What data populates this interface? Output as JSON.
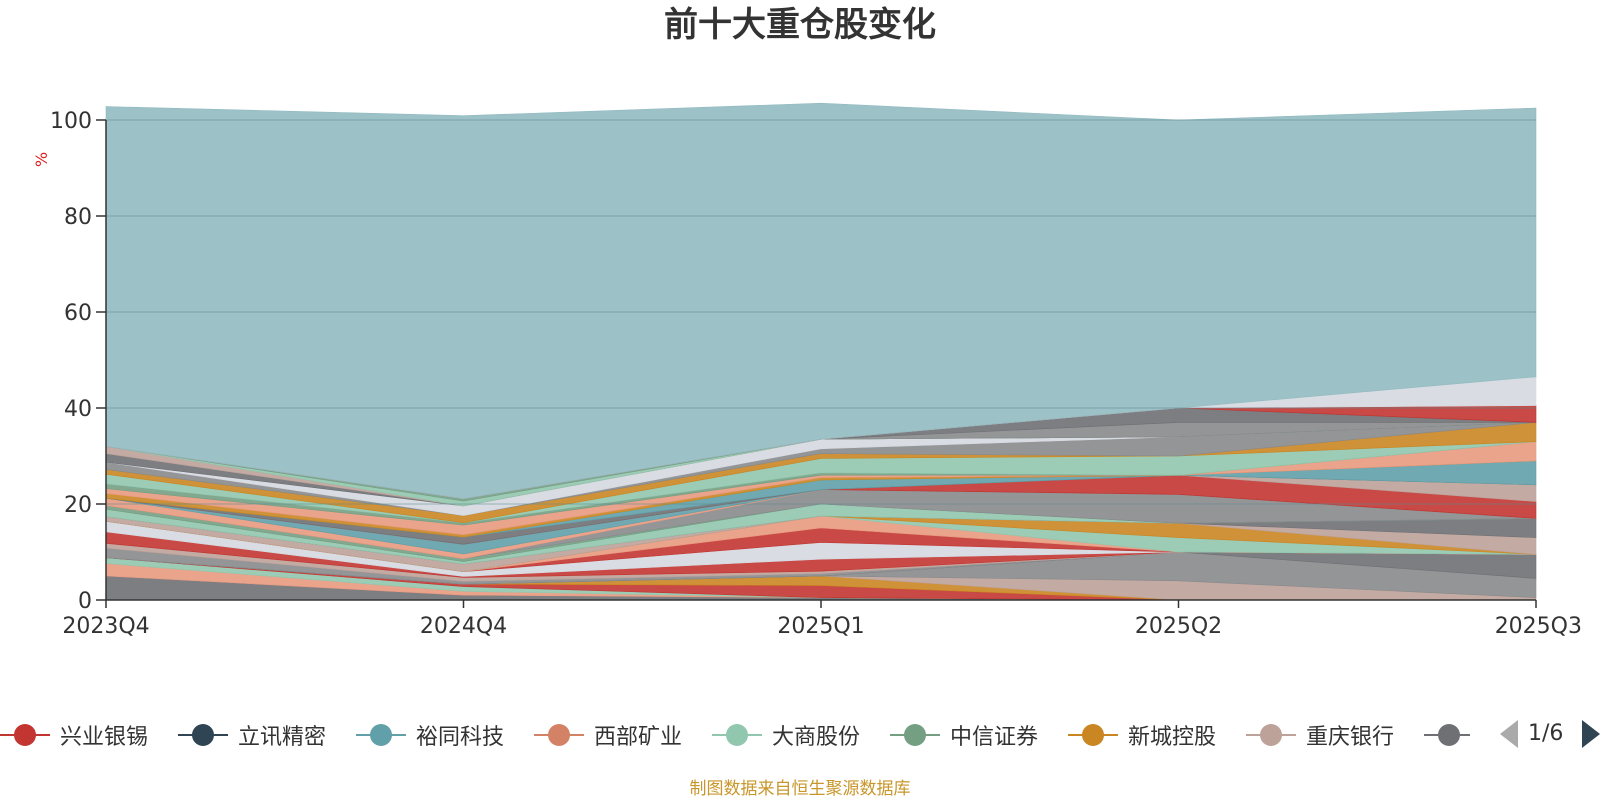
{
  "title": "前十大重仓股变化",
  "source_note": "制图数据来自恒生聚源数据库",
  "legend_pager": "1/6",
  "legend": [
    {
      "name": "兴业银锡",
      "color": "#c23531"
    },
    {
      "name": "立讯精密",
      "color": "#2f4554"
    },
    {
      "name": "裕同科技",
      "color": "#61a0a8"
    },
    {
      "name": "西部矿业",
      "color": "#d48265"
    },
    {
      "name": "大商股份",
      "color": "#91c7ae"
    },
    {
      "name": "中信证券",
      "color": "#749f83"
    },
    {
      "name": "新城控股",
      "color": "#ca8622"
    },
    {
      "name": "重庆银行",
      "color": "#bda29a"
    },
    {
      "name": "",
      "color": "#6e7074"
    }
  ],
  "chart_data": {
    "type": "area",
    "stacked": true,
    "ylabel": "%",
    "ylim": [
      0,
      100
    ],
    "yticks": [
      0,
      20,
      40,
      60,
      80,
      100
    ],
    "grid": true,
    "x": [
      "2023Q4",
      "2024Q4",
      "2025Q1",
      "2025Q2",
      "2025Q3"
    ],
    "series": [
      {
        "color": "#6e7074",
        "values": [
          5.0,
          1.0,
          0.5,
          0.0,
          0.0
        ]
      },
      {
        "color": "#e89a80",
        "values": [
          2.6,
          0.8,
          0.0,
          0.0,
          0.0
        ]
      },
      {
        "color": "#91c7ae",
        "values": [
          1.2,
          1.0,
          0.0,
          0.0,
          0.0
        ]
      },
      {
        "color": "#c23531",
        "values": [
          0.0,
          0.5,
          2.5,
          0.0,
          0.0
        ]
      },
      {
        "color": "#ca8622",
        "values": [
          0.0,
          0.0,
          2.0,
          0.0,
          0.0
        ]
      },
      {
        "color": "#bda29a",
        "values": [
          0.0,
          0.0,
          0.0,
          4.0,
          0.5
        ]
      },
      {
        "color": "#888a8c",
        "values": [
          0.0,
          0.0,
          0.0,
          6.0,
          4.0
        ]
      },
      {
        "color": "#6e7074",
        "values": [
          0.0,
          0.0,
          0.0,
          0.0,
          5.0
        ]
      },
      {
        "color": "#888a8c",
        "values": [
          2.0,
          0.6,
          0.5,
          0.0,
          0.0
        ]
      },
      {
        "color": "#bda29a",
        "values": [
          1.0,
          0.8,
          0.5,
          0.0,
          0.0
        ]
      },
      {
        "color": "#c23531",
        "values": [
          2.4,
          0.2,
          2.5,
          0.0,
          0.0
        ]
      },
      {
        "color": "#d5d9e0",
        "values": [
          2.2,
          1.0,
          3.5,
          0.0,
          0.0
        ]
      },
      {
        "color": "#c23531",
        "values": [
          0.0,
          0.0,
          3.0,
          0.0,
          0.0
        ]
      },
      {
        "color": "#e89a80",
        "values": [
          0.0,
          0.0,
          2.5,
          0.0,
          0.0
        ]
      },
      {
        "color": "#91c7ae",
        "values": [
          0.0,
          0.0,
          0.0,
          3.0,
          0.0
        ]
      },
      {
        "color": "#ca8622",
        "values": [
          0.0,
          0.0,
          0.0,
          3.0,
          0.0
        ]
      },
      {
        "color": "#bda29a",
        "values": [
          1.0,
          1.6,
          0.0,
          0.0,
          3.5
        ]
      },
      {
        "color": "#6e7074",
        "values": [
          0.0,
          0.0,
          0.0,
          0.0,
          4.0
        ]
      },
      {
        "color": "#91c7ae",
        "values": [
          1.5,
          0.5,
          2.5,
          0.0,
          0.0
        ]
      },
      {
        "color": "#749f83",
        "values": [
          0.8,
          0.6,
          0.0,
          0.0,
          0.0
        ]
      },
      {
        "color": "#888a8c",
        "values": [
          0.0,
          0.0,
          3.0,
          6.0,
          0.0
        ]
      },
      {
        "color": "#e89a80",
        "values": [
          1.5,
          1.0,
          0.0,
          0.0,
          0.0
        ]
      },
      {
        "color": "#61a0a8",
        "values": [
          0.0,
          2.0,
          0.0,
          0.0,
          0.0
        ]
      },
      {
        "color": "#c23531",
        "values": [
          0.0,
          0.0,
          0.0,
          4.0,
          3.5
        ]
      },
      {
        "color": "#bda29a",
        "values": [
          0.0,
          0.0,
          0.0,
          0.0,
          3.5
        ]
      },
      {
        "color": "#6e7074",
        "values": [
          0.0,
          1.5,
          0.0,
          0.0,
          0.0
        ]
      },
      {
        "color": "#61a0a8",
        "values": [
          0.0,
          0.0,
          2.0,
          0.0,
          5.0
        ]
      },
      {
        "color": "#ca8622",
        "values": [
          1.0,
          0.5,
          0.5,
          0.0,
          0.0
        ]
      },
      {
        "color": "#e89a80",
        "values": [
          1.0,
          2.0,
          0.5,
          0.0,
          4.0
        ]
      },
      {
        "color": "#749f83",
        "values": [
          1.0,
          0.5,
          0.5,
          0.0,
          0.0
        ]
      },
      {
        "color": "#91c7ae",
        "values": [
          2.0,
          0.0,
          3.0,
          4.0,
          0.0
        ]
      },
      {
        "color": "#ca8622",
        "values": [
          1.0,
          1.5,
          1.0,
          0.0,
          4.0
        ]
      },
      {
        "color": "#888a8c",
        "values": [
          1.5,
          0.0,
          1.0,
          4.0,
          0.0
        ]
      },
      {
        "color": "#d5d9e0",
        "values": [
          0.0,
          2.0,
          2.0,
          0.0,
          0.0
        ]
      },
      {
        "color": "#6e7074",
        "values": [
          1.8,
          0.0,
          0.0,
          0.0,
          0.0
        ]
      },
      {
        "color": "#bda29a",
        "values": [
          1.5,
          0.0,
          0.0,
          0.0,
          0.0
        ]
      },
      {
        "color": "#91c7ae",
        "values": [
          0.0,
          1.0,
          0.0,
          0.0,
          0.0
        ]
      },
      {
        "color": "#749f83",
        "values": [
          0.0,
          0.5,
          0.0,
          0.0,
          0.0
        ]
      },
      {
        "color": "#888a8c",
        "values": [
          0.0,
          0.0,
          0.0,
          3.0,
          0.0
        ]
      },
      {
        "color": "#6e7074",
        "values": [
          0.0,
          0.0,
          0.0,
          3.0,
          0.0
        ]
      },
      {
        "color": "#c23531",
        "values": [
          0.0,
          0.0,
          0.0,
          0.0,
          3.5
        ]
      },
      {
        "color": "#d5d9e0",
        "values": [
          0.0,
          0.0,
          0.0,
          0.0,
          6.0
        ]
      },
      {
        "color": "#91bac0",
        "values": [
          70.8,
          79.8,
          70.0,
          60.0,
          56.0
        ]
      }
    ]
  }
}
